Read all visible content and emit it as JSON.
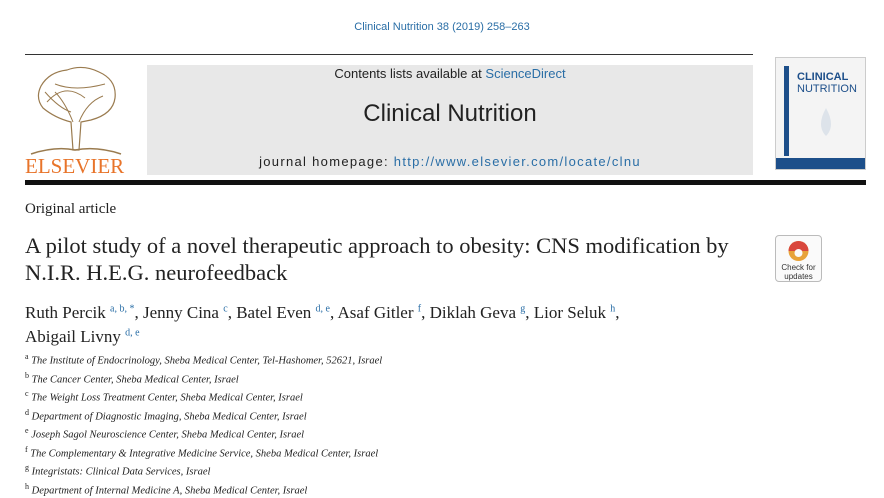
{
  "header": {
    "citation": "Clinical Nutrition 38 (2019) 258–263",
    "contents_text": "Contents lists available at ",
    "contents_link": "ScienceDirect",
    "journal": "Clinical Nutrition",
    "homepage_text": "journal homepage: ",
    "homepage_url": "http://www.elsevier.com/locate/clnu",
    "publisher": "ELSEVIER",
    "cover_title": [
      "CLINICAL",
      "NUTRITION"
    ]
  },
  "article": {
    "type": "Original article",
    "title": "A pilot study of a novel therapeutic approach to obesity: CNS modification by N.I.R. H.E.G. neurofeedback",
    "check_label": "Check for updates",
    "author_separator": ",",
    "authors": [
      {
        "name": "Ruth Percik",
        "sup": "a, b, *"
      },
      {
        "name": "Jenny Cina",
        "sup": "c"
      },
      {
        "name": "Batel Even",
        "sup": "d, e"
      },
      {
        "name": "Asaf Gitler",
        "sup": "f"
      },
      {
        "name": "Diklah Geva",
        "sup": "g"
      },
      {
        "name": "Lior Seluk",
        "sup": "h"
      },
      {
        "name": "Abigail Livny",
        "sup": "d, e"
      }
    ],
    "affiliations": [
      {
        "label": "a",
        "text": "The Institute of Endocrinology, Sheba Medical Center, Tel-Hashomer, 52621, Israel"
      },
      {
        "label": "b",
        "text": "The Cancer Center, Sheba Medical Center, Israel"
      },
      {
        "label": "c",
        "text": "The Weight Loss Treatment Center, Sheba Medical Center, Israel"
      },
      {
        "label": "d",
        "text": "Department of Diagnostic Imaging, Sheba Medical Center, Israel"
      },
      {
        "label": "e",
        "text": "Joseph Sagol Neuroscience Center, Sheba Medical Center, Israel"
      },
      {
        "label": "f",
        "text": "The Complementary & Integrative Medicine Service, Sheba Medical Center, Israel"
      },
      {
        "label": "g",
        "text": "Integristats: Clinical Data Services, Israel"
      },
      {
        "label": "h",
        "text": "Department of Internal Medicine A, Sheba Medical Center, Israel"
      }
    ]
  }
}
